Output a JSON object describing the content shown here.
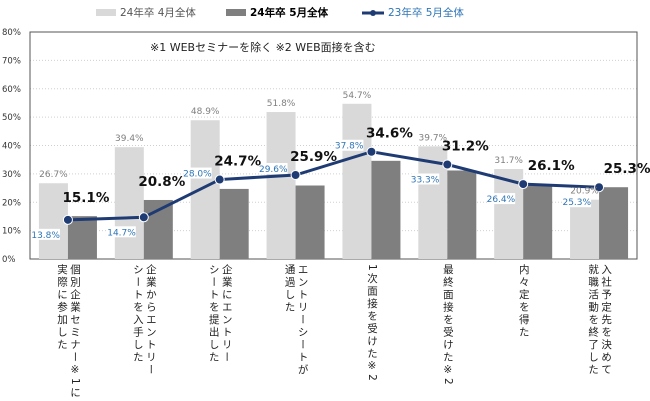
{
  "chart_data": {
    "type": "bar+line",
    "note": "※1 WEBセミナーを除く ※2 WEB面接を含む",
    "categories": [
      "個別企業セミナー※1に\n実際に参加した",
      "企業からエントリー\nシートを入手した",
      "企業にエントリー\nシートを提出した",
      "エントリーシートが\n通過した",
      "1次面接を受けた※2",
      "最終面接を受けた※2",
      "内々定を得た",
      "入社予定先を決めて\n就職活動を終了した"
    ],
    "series": [
      {
        "name": "24年卒 4月全体",
        "type": "bar",
        "color": "#d9d9d9",
        "values": [
          26.7,
          39.4,
          48.9,
          51.8,
          54.7,
          39.7,
          31.7,
          20.9
        ]
      },
      {
        "name": "24年卒 5月全体",
        "type": "bar",
        "color": "#7f7f7f",
        "values": [
          15.1,
          20.8,
          24.7,
          25.9,
          34.6,
          31.2,
          26.1,
          25.3
        ]
      },
      {
        "name": "23年卒 5月全体",
        "type": "line",
        "color": "#1f3b73",
        "label_color": "#2e75b6",
        "values": [
          13.8,
          14.7,
          28.0,
          29.6,
          37.8,
          33.3,
          26.4,
          25.3
        ]
      }
    ],
    "yticks": [
      "0%",
      "10%",
      "20%",
      "30%",
      "40%",
      "50%",
      "60%",
      "70%",
      "80%"
    ],
    "ylim": [
      0,
      80
    ],
    "grid": true,
    "legend": "top"
  }
}
